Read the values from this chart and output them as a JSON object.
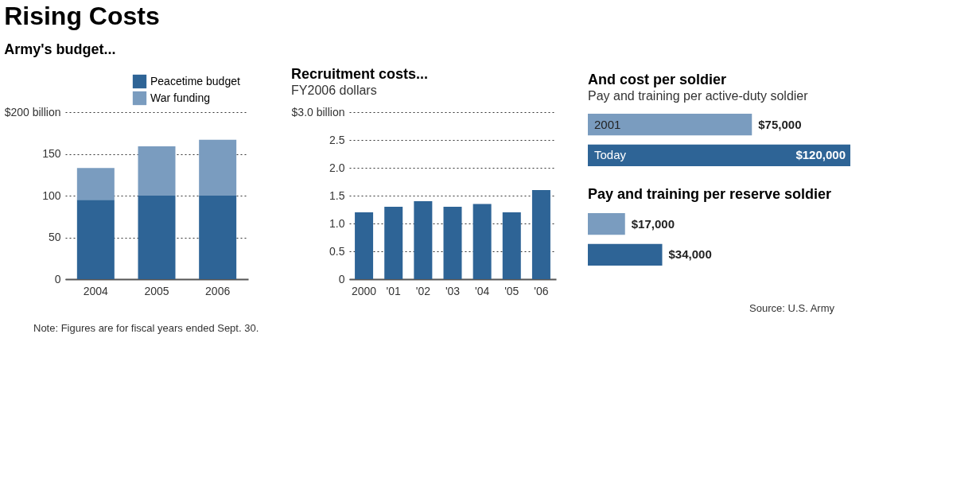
{
  "chart_data": [
    {
      "type": "bar",
      "title": "Rising Costs",
      "subtitle": "Army's budget...",
      "categories": [
        "2004",
        "2005",
        "2006"
      ],
      "stacked": true,
      "legend": "top right",
      "grid": "y",
      "series": [
        {
          "name": "Peacetime budget",
          "color": "#2e6496",
          "values": [
            95,
            100,
            100
          ]
        },
        {
          "name": "War funding",
          "color": "#7a9cbf",
          "values": [
            38,
            59,
            67
          ]
        }
      ],
      "ylim": [
        0,
        200
      ],
      "yticks": [
        0,
        50,
        100,
        150,
        {
          "value": 200,
          "label": "$200 billion"
        }
      ],
      "annotations": [
        "Note: Figures are for fiscal years ended Sept. 30."
      ]
    },
    {
      "type": "bar",
      "title": "Recruitment costs...",
      "subtitle": "FY2006 dollars",
      "categories": [
        "2000",
        "'01",
        "'02",
        "'03",
        "'04",
        "'05",
        "'06"
      ],
      "grid": "y",
      "color": "#2e6496",
      "values": [
        1.2,
        1.3,
        1.4,
        1.3,
        1.35,
        1.2,
        1.6
      ],
      "ylim": [
        0,
        3
      ],
      "yticks": [
        {
          "value": 0,
          "label": "0"
        },
        0.5,
        {
          "value": 1,
          "label": "1.0"
        },
        1.5,
        {
          "value": 2,
          "label": "2.0"
        },
        2.5,
        {
          "value": 3,
          "label": "$3.0 billion"
        }
      ]
    },
    {
      "type": "bar",
      "orientation": "horizontal",
      "title": "And cost per soldier",
      "subtitle": "Pay and training per active-duty soldier",
      "categories": [
        "2001",
        "Today"
      ],
      "values": [
        75000,
        120000
      ],
      "colors": [
        "#7a9cbf",
        "#2e6496"
      ],
      "value_labels": [
        "$75,000",
        "$120,000"
      ]
    },
    {
      "type": "bar",
      "orientation": "horizontal",
      "title": "Pay and training per reserve soldier",
      "categories": [
        null,
        null
      ],
      "values": [
        17000,
        34000
      ],
      "colors": [
        "#7a9cbf",
        "#2e6496"
      ],
      "value_labels": [
        "$17,000",
        "$34,000"
      ],
      "annotations": [
        "Source: U.S. Army"
      ]
    }
  ]
}
